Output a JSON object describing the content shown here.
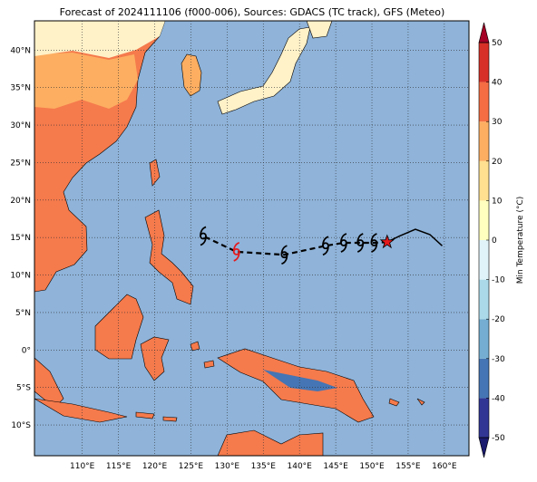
{
  "title": "Forecast of 2024111106 (f000-006), Sources: GDACS (TC track), GFS (Meteo)",
  "map": {
    "lon_range": [
      103.4,
      163.4
    ],
    "lat_range": [
      -14.1,
      43.9
    ],
    "lon_ticks": [
      {
        "value": 110,
        "label": "110°E"
      },
      {
        "value": 115,
        "label": "115°E"
      },
      {
        "value": 120,
        "label": "120°E"
      },
      {
        "value": 125,
        "label": "125°E"
      },
      {
        "value": 130,
        "label": "130°E"
      },
      {
        "value": 135,
        "label": "135°E"
      },
      {
        "value": 140,
        "label": "140°E"
      },
      {
        "value": 145,
        "label": "145°E"
      },
      {
        "value": 150,
        "label": "150°E"
      },
      {
        "value": 155,
        "label": "155°E"
      },
      {
        "value": 160,
        "label": "160°E"
      }
    ],
    "lat_ticks": [
      {
        "value": 40,
        "label": "40°N"
      },
      {
        "value": 35,
        "label": "35°N"
      },
      {
        "value": 30,
        "label": "30°N"
      },
      {
        "value": 25,
        "label": "25°N"
      },
      {
        "value": 20,
        "label": "20°N"
      },
      {
        "value": 15,
        "label": "15°N"
      },
      {
        "value": 10,
        "label": "10°N"
      },
      {
        "value": 5,
        "label": "5°N"
      },
      {
        "value": 0,
        "label": "0°"
      },
      {
        "value": -5,
        "label": "5°S"
      },
      {
        "value": -10,
        "label": "10°S"
      }
    ],
    "grid": true
  },
  "observed_track": {
    "lon": [
      152.1,
      153.8,
      156.0,
      158.0,
      159.7
    ],
    "lat": [
      14.4,
      15.2,
      16.1,
      15.4,
      13.9
    ]
  },
  "current_position": {
    "lon": 152.1,
    "lat": 14.4,
    "color": "#e41a1c"
  },
  "forecast_track": {
    "lon": [
      152.1,
      150.3,
      148.4,
      146.1,
      143.6,
      137.9,
      131.3,
      126.7
    ],
    "lat": [
      14.4,
      14.3,
      14.3,
      14.3,
      13.9,
      12.7,
      13.1,
      15.2
    ],
    "symbol_colors": [
      null,
      "#000000",
      "#000000",
      "#000000",
      "#000000",
      "#000000",
      "#e41a1c",
      "#000000"
    ]
  },
  "colorbar": {
    "label": "Min Temperature (°C)",
    "ticks": [
      -50,
      -40,
      -30,
      -20,
      -10,
      0,
      10,
      20,
      30,
      40,
      50
    ],
    "colors": [
      "#313695",
      "#4575b4",
      "#74add1",
      "#abd9e9",
      "#e0f3f8",
      "#ffffbf",
      "#fee090",
      "#fdae61",
      "#f46d43",
      "#d73027"
    ],
    "under_color": "#1a1a6e",
    "over_color": "#a50026"
  }
}
